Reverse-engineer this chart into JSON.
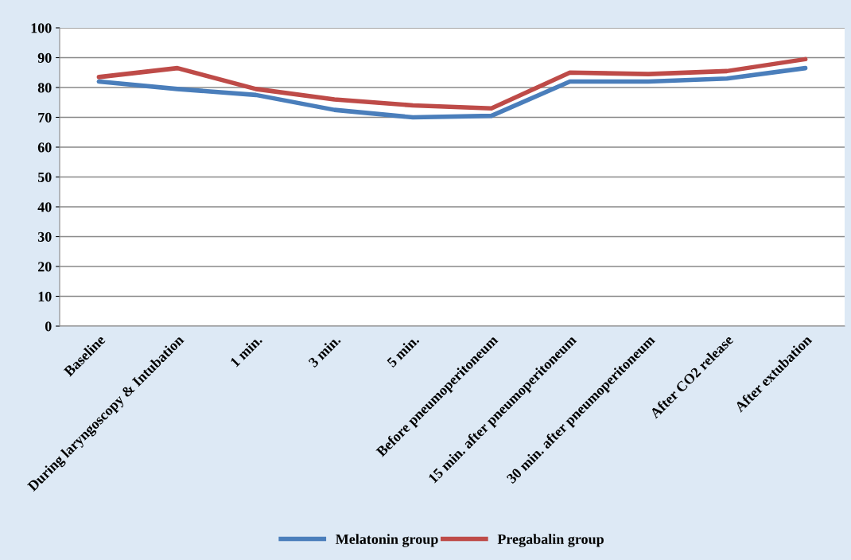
{
  "chart_data": {
    "type": "line",
    "categories": [
      "Baseline",
      "During laryngoscopy & Intubation",
      "1 min.",
      "3 min.",
      "5 min.",
      "Before pneumoperitoneum",
      "15 min. after pneumoperitoneum",
      "30 min. after pneumoperitoneum",
      "After CO2 release",
      "After extubation"
    ],
    "series": [
      {
        "name": "Melatonin group",
        "color": "#4a7ebb",
        "values": [
          82,
          79.5,
          77.5,
          72.5,
          70,
          70.5,
          82,
          82,
          83,
          86.5
        ]
      },
      {
        "name": "Pregabalin group",
        "color": "#be4b48",
        "values": [
          83.5,
          86.5,
          79.5,
          76,
          74,
          73,
          85,
          84.5,
          85.5,
          89.5
        ]
      }
    ],
    "ylim": [
      0,
      100
    ],
    "yticks": [
      0,
      10,
      20,
      30,
      40,
      50,
      60,
      70,
      80,
      90,
      100
    ],
    "grid": "y",
    "legend": "bottom",
    "marker": "none",
    "line_style": "solid"
  }
}
